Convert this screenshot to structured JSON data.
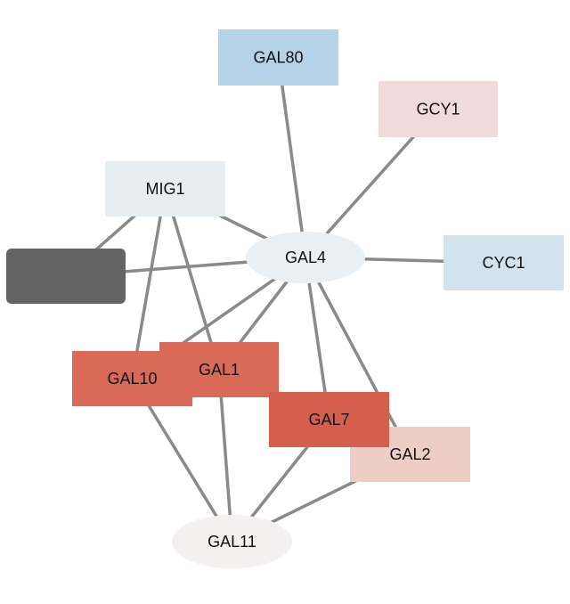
{
  "network": {
    "nodes": [
      {
        "id": "GAL80",
        "label": "GAL80",
        "shape": "rect",
        "color": "#b5d3e6"
      },
      {
        "id": "GCY1",
        "label": "GCY1",
        "shape": "rect",
        "color": "#f0dbda"
      },
      {
        "id": "MIG1",
        "label": "MIG1",
        "shape": "rect",
        "color": "#e6eef2"
      },
      {
        "id": "UNLABELED",
        "label": "",
        "shape": "rounded",
        "color": "#646464"
      },
      {
        "id": "GAL4",
        "label": "GAL4",
        "shape": "ellipse",
        "color": "#e9f0f4"
      },
      {
        "id": "CYC1",
        "label": "CYC1",
        "shape": "rect",
        "color": "#d3e3ee"
      },
      {
        "id": "GAL2",
        "label": "GAL2",
        "shape": "rect",
        "color": "#efcdc7"
      },
      {
        "id": "GAL10",
        "label": "GAL10",
        "shape": "rect",
        "color": "#d96a57"
      },
      {
        "id": "GAL1",
        "label": "GAL1",
        "shape": "rect",
        "color": "#d96a57"
      },
      {
        "id": "GAL7",
        "label": "GAL7",
        "shape": "rect",
        "color": "#d55f4d"
      },
      {
        "id": "GAL11",
        "label": "GAL11",
        "shape": "ellipse",
        "color": "#f4f0ef"
      }
    ],
    "edges": [
      [
        "GAL4",
        "GAL80"
      ],
      [
        "GAL4",
        "GCY1"
      ],
      [
        "GAL4",
        "MIG1"
      ],
      [
        "GAL4",
        "UNLABELED"
      ],
      [
        "GAL4",
        "CYC1"
      ],
      [
        "GAL4",
        "GAL10"
      ],
      [
        "GAL4",
        "GAL1"
      ],
      [
        "GAL4",
        "GAL7"
      ],
      [
        "GAL4",
        "GAL2"
      ],
      [
        "MIG1",
        "UNLABELED"
      ],
      [
        "MIG1",
        "GAL10"
      ],
      [
        "MIG1",
        "GAL1"
      ],
      [
        "GAL10",
        "GAL11"
      ],
      [
        "GAL1",
        "GAL11"
      ],
      [
        "GAL7",
        "GAL11"
      ],
      [
        "GAL2",
        "GAL11"
      ]
    ],
    "edge_color": "#8a8a8a",
    "label_color": "#111111"
  }
}
